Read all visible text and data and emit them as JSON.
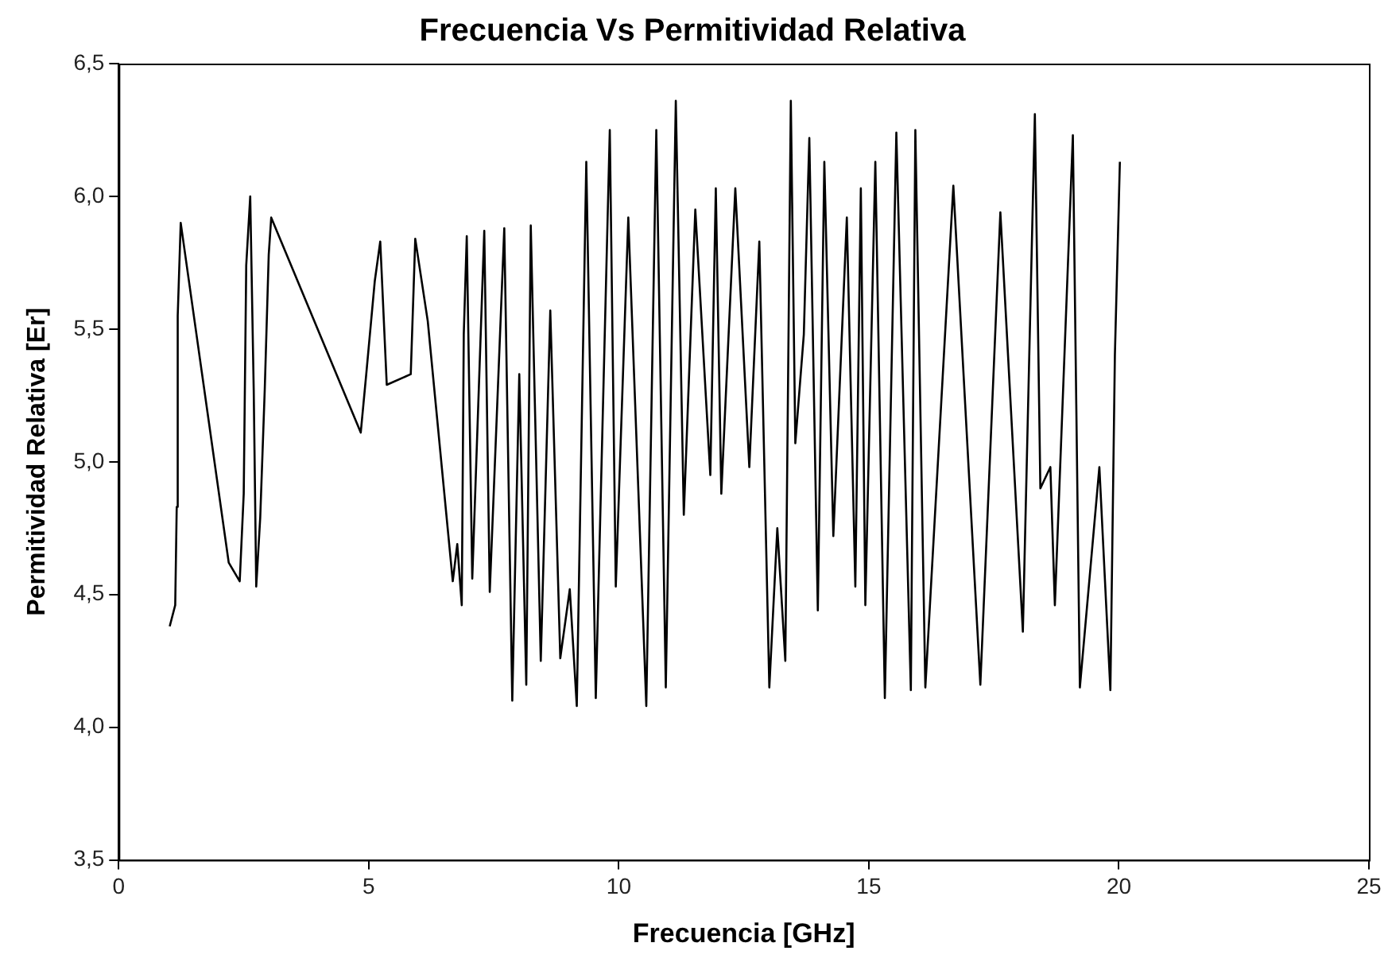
{
  "chart_data": {
    "type": "line",
    "title": "Frecuencia Vs Permitividad Relativa",
    "xlabel": "Frecuencia [GHz]",
    "ylabel": "Permitividad Relativa [Er]",
    "xlim": [
      0,
      25
    ],
    "xticks": [
      0,
      5,
      10,
      15,
      20,
      25
    ],
    "ylim": [
      3.5,
      6.5
    ],
    "yticks": [
      {
        "value": 3.5,
        "label": "3,5"
      },
      {
        "value": 4.0,
        "label": "4,0"
      },
      {
        "value": 4.5,
        "label": "4,5"
      },
      {
        "value": 5.0,
        "label": "5,0"
      },
      {
        "value": 5.5,
        "label": "5,5"
      },
      {
        "value": 6.0,
        "label": "6,0"
      },
      {
        "value": 6.5,
        "label": "6,5"
      }
    ],
    "grid": false,
    "legend": false,
    "series": [
      {
        "color": "#000000",
        "x": [
          1.02,
          1.13,
          1.16,
          1.18,
          1.24,
          2.2,
          2.42,
          2.5,
          2.55,
          2.63,
          2.7,
          2.75,
          2.83,
          2.92,
          3.0,
          3.05,
          4.84,
          4.95,
          5.12,
          5.23,
          5.36,
          5.84,
          5.93,
          6.18,
          6.68,
          6.77,
          6.86,
          6.9,
          6.96,
          7.07,
          7.31,
          7.42,
          7.71,
          7.87,
          8.01,
          8.15,
          8.24,
          8.44,
          8.63,
          8.83,
          9.02,
          9.16,
          9.35,
          9.54,
          9.82,
          9.94,
          10.19,
          10.55,
          10.75,
          10.94,
          11.14,
          11.3,
          11.53,
          11.83,
          11.94,
          12.05,
          12.33,
          12.61,
          12.81,
          13.01,
          13.17,
          13.33,
          13.44,
          13.53,
          13.7,
          13.81,
          13.98,
          14.11,
          14.29,
          14.56,
          14.73,
          14.84,
          14.93,
          15.13,
          15.32,
          15.55,
          15.84,
          15.93,
          16.13,
          16.69,
          17.23,
          17.63,
          18.08,
          18.32,
          18.43,
          18.63,
          18.72,
          19.08,
          19.22,
          19.61,
          19.83,
          19.92,
          20.02
        ],
        "values": [
          4.38,
          4.46,
          4.83,
          5.55,
          5.9,
          4.62,
          4.55,
          4.88,
          5.74,
          6.0,
          5.27,
          4.53,
          4.79,
          5.27,
          5.78,
          5.92,
          5.11,
          5.33,
          5.68,
          5.83,
          5.29,
          5.33,
          5.84,
          5.53,
          4.55,
          4.69,
          4.46,
          5.48,
          5.85,
          4.56,
          5.87,
          4.51,
          5.88,
          4.1,
          5.33,
          4.16,
          5.89,
          4.25,
          5.57,
          4.26,
          4.52,
          4.08,
          6.13,
          4.11,
          6.25,
          4.53,
          5.92,
          4.08,
          6.25,
          4.15,
          6.36,
          4.8,
          5.95,
          4.95,
          6.03,
          4.88,
          6.03,
          4.98,
          5.83,
          4.15,
          4.75,
          4.25,
          6.36,
          5.07,
          5.48,
          6.22,
          4.44,
          6.13,
          4.72,
          5.92,
          4.53,
          6.03,
          4.46,
          6.13,
          4.11,
          6.24,
          4.14,
          6.25,
          4.15,
          6.04,
          4.16,
          5.94,
          4.36,
          6.31,
          4.9,
          4.98,
          4.46,
          6.23,
          4.15,
          4.98,
          4.14,
          5.4,
          6.13
        ]
      }
    ]
  }
}
